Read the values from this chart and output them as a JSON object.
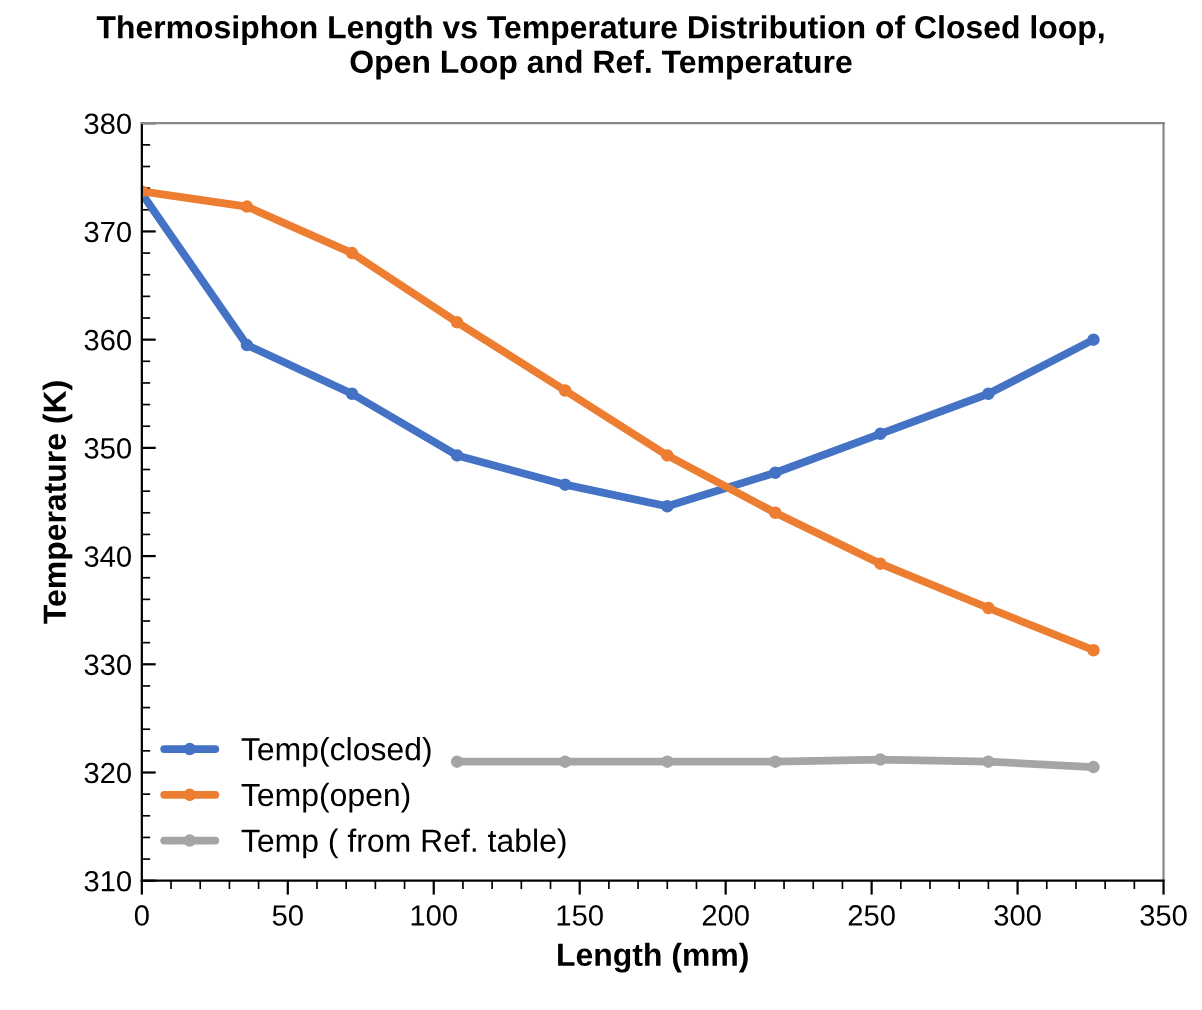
{
  "chart_data": {
    "type": "line",
    "title": "Thermosiphon Length vs Temperature Distribution of Closed loop,\nOpen Loop and Ref. Temperature",
    "xlabel": "Length (mm)",
    "ylabel": "Temperature (K)",
    "xlim": [
      0,
      350
    ],
    "xticks": [
      0,
      50,
      100,
      150,
      200,
      250,
      300,
      350
    ],
    "ylim": [
      310,
      380
    ],
    "yticks": [
      310,
      320,
      330,
      340,
      350,
      360,
      370,
      380
    ],
    "grid": false,
    "legend": "bottom left",
    "marker": "circle",
    "line_style": "solid",
    "series": [
      {
        "name": "Temp(closed)",
        "color": "#4472c4",
        "x": [
          0,
          36,
          72,
          108,
          145,
          180,
          217,
          253,
          290,
          326
        ],
        "values": [
          373.5,
          359.5,
          355,
          349.3,
          346.6,
          344.6,
          347.7,
          351.3,
          355,
          360
        ]
      },
      {
        "name": "Temp(open)",
        "color": "#ed7d31",
        "x": [
          0,
          36,
          72,
          108,
          145,
          180,
          217,
          253,
          290,
          326
        ],
        "values": [
          373.7,
          372.3,
          368,
          361.6,
          355.3,
          349.3,
          344,
          339.3,
          335.2,
          331.3
        ]
      },
      {
        "name": "Temp ( from Ref. table)",
        "color": "#a5a5a5",
        "x": [
          108,
          145,
          180,
          217,
          253,
          290,
          326
        ],
        "values": [
          321,
          321,
          321,
          321,
          321.2,
          321,
          320.5
        ]
      }
    ]
  }
}
